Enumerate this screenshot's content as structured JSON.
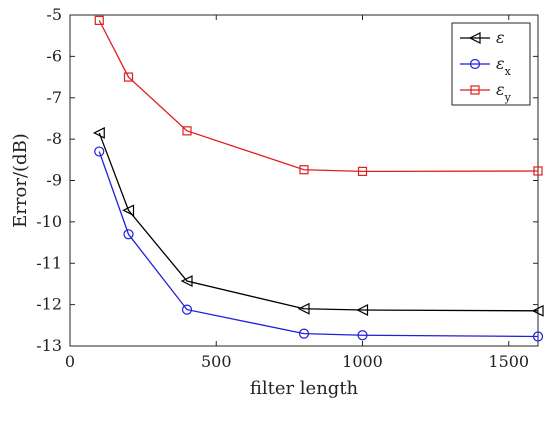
{
  "chart_data": {
    "type": "line",
    "title": "",
    "xlabel": "filter length",
    "ylabel": "Error/(dB)",
    "xlim": [
      0,
      1600
    ],
    "ylim": [
      -13,
      -5
    ],
    "xticks": [
      0,
      500,
      1000,
      1500
    ],
    "yticks": [
      -5,
      -6,
      -7,
      -8,
      -9,
      -10,
      -11,
      -12,
      -13
    ],
    "grid": false,
    "legend_position": "top-right",
    "x": [
      100,
      200,
      400,
      800,
      1000,
      1600
    ],
    "series": [
      {
        "name": "ε",
        "name_base": "ε",
        "name_sub": "",
        "marker": "triangle-left",
        "color": "#000000",
        "values": [
          -7.85,
          -9.72,
          -11.43,
          -12.1,
          -12.13,
          -12.15
        ]
      },
      {
        "name": "εx",
        "name_base": "ε",
        "name_sub": "x",
        "marker": "circle",
        "color": "#1f1fdc",
        "values": [
          -8.3,
          -10.3,
          -12.12,
          -12.7,
          -12.74,
          -12.77
        ]
      },
      {
        "name": "εy",
        "name_base": "ε",
        "name_sub": "y",
        "marker": "square",
        "color": "#e01f1f",
        "values": [
          -5.13,
          -6.5,
          -7.8,
          -8.74,
          -8.78,
          -8.77
        ]
      }
    ]
  }
}
